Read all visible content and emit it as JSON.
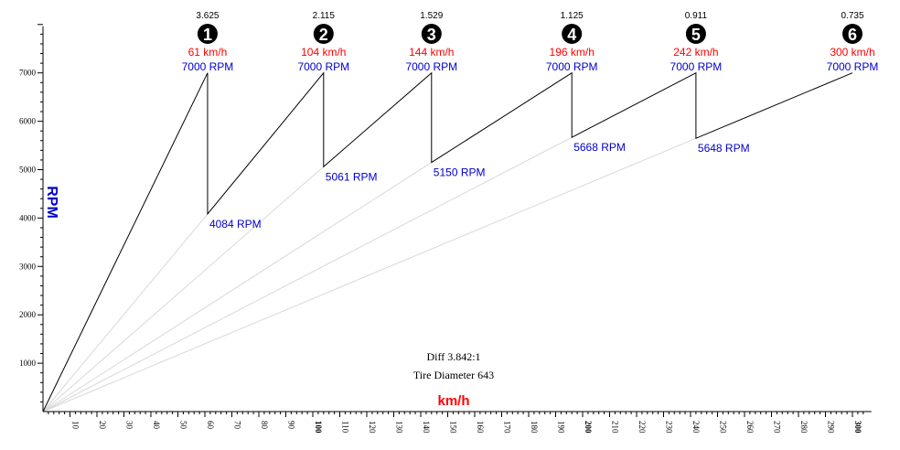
{
  "chart_data": {
    "type": "line",
    "title": "",
    "xlabel": "km/h",
    "ylabel": "RPM",
    "xlim": [
      0,
      305
    ],
    "ylim": [
      0,
      8000
    ],
    "x_ticks_minor_step": 2,
    "x_tick_labels": [
      10,
      20,
      30,
      40,
      50,
      60,
      70,
      80,
      90,
      100,
      110,
      120,
      130,
      140,
      150,
      160,
      170,
      180,
      190,
      200,
      210,
      220,
      230,
      240,
      250,
      260,
      270,
      280,
      290,
      300
    ],
    "x_tick_labels_bold": [
      100,
      200,
      300
    ],
    "y_tick_labels": [
      1000,
      2000,
      3000,
      4000,
      5000,
      6000,
      7000
    ],
    "y_ticks_minor_step": 200,
    "gears": [
      {
        "number": "1",
        "ratio": "3.625",
        "speed_label": "61 km/h",
        "rpm_label": "7000 RPM",
        "shift_speed": 61,
        "shift_rpm": 7000,
        "drop_rpm": 4084,
        "drop_label": "4084 RPM"
      },
      {
        "number": "2",
        "ratio": "2.115",
        "speed_label": "104 km/h",
        "rpm_label": "7000 RPM",
        "shift_speed": 104,
        "shift_rpm": 7000,
        "drop_rpm": 5061,
        "drop_label": "5061 RPM"
      },
      {
        "number": "3",
        "ratio": "1.529",
        "speed_label": "144 km/h",
        "rpm_label": "7000 RPM",
        "shift_speed": 144,
        "shift_rpm": 7000,
        "drop_rpm": 5150,
        "drop_label": "5150 RPM"
      },
      {
        "number": "4",
        "ratio": "1.125",
        "speed_label": "196 km/h",
        "rpm_label": "7000 RPM",
        "shift_speed": 196,
        "shift_rpm": 7000,
        "drop_rpm": 5668,
        "drop_label": "5668 RPM"
      },
      {
        "number": "5",
        "ratio": "0.911",
        "speed_label": "242 km/h",
        "rpm_label": "7000 RPM",
        "shift_speed": 242,
        "shift_rpm": 7000,
        "drop_rpm": 5648,
        "drop_label": "5648 RPM"
      },
      {
        "number": "6",
        "ratio": "0.735",
        "speed_label": "300 km/h",
        "rpm_label": "7000 RPM",
        "shift_speed": 300,
        "shift_rpm": 7000,
        "drop_rpm": null,
        "drop_label": ""
      }
    ],
    "annotations": {
      "diff": "Diff 3.842:1",
      "tire": "Tire Diameter 643"
    },
    "colors": {
      "shift_line": "#000000",
      "reference_line": "#d8d8d8",
      "speed_label": "#ff0000",
      "rpm_label": "#0000cc",
      "axis": "#000000",
      "gear_badge": "#000000"
    }
  }
}
